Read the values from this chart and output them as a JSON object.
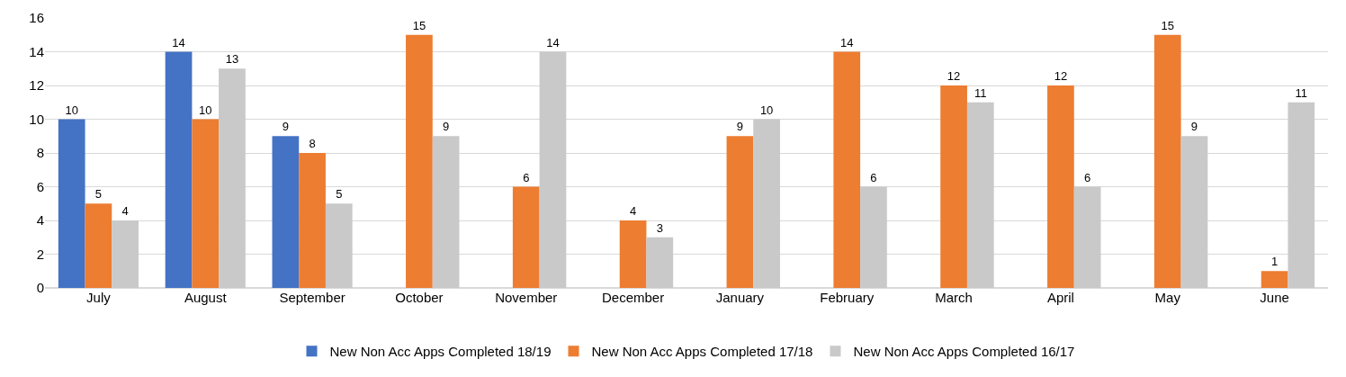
{
  "chart_data": {
    "type": "bar",
    "categories": [
      "July",
      "August",
      "September",
      "October",
      "November",
      "December",
      "January",
      "February",
      "March",
      "April",
      "May",
      "June"
    ],
    "series": [
      {
        "name": "New Non Acc Apps Completed 18/19",
        "color": "#4472c4",
        "values": [
          10,
          14,
          9,
          null,
          null,
          null,
          null,
          null,
          null,
          null,
          null,
          null
        ]
      },
      {
        "name": "New Non Acc Apps Completed 17/18",
        "color": "#ed7d31",
        "values": [
          5,
          10,
          8,
          15,
          6,
          4,
          9,
          14,
          12,
          12,
          15,
          1
        ]
      },
      {
        "name": "New Non Acc Apps Completed 16/17",
        "color": "#c9c9c9",
        "values": [
          4,
          13,
          5,
          9,
          14,
          3,
          10,
          6,
          11,
          6,
          9,
          11
        ]
      }
    ],
    "ylim": [
      0,
      16
    ],
    "yticks": [
      0,
      2,
      4,
      6,
      8,
      10,
      12,
      14,
      16
    ],
    "grid": "y",
    "legend": "bottom",
    "data_labels": true
  }
}
